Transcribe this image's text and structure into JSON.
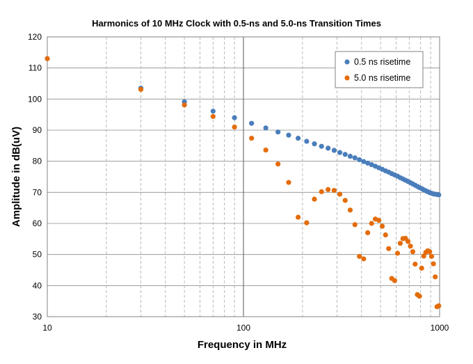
{
  "chart_data": {
    "type": "scatter",
    "title": "Harmonics of 10 MHz Clock with 0.5-ns and 5.0-ns Transition Times",
    "xlabel": "Frequency in MHz",
    "ylabel": "Amplitude in dB(uV)",
    "x_scale": "log",
    "xlim": [
      10,
      1000
    ],
    "ylim": [
      30,
      120
    ],
    "x_ticks": [
      10,
      100,
      1000
    ],
    "x_tick_labels": [
      "10",
      "100",
      "1000"
    ],
    "y_ticks": [
      30,
      40,
      50,
      60,
      70,
      80,
      90,
      100,
      110,
      120
    ],
    "y_tick_labels": [
      "30",
      "40",
      "50",
      "60",
      "70",
      "80",
      "90",
      "100",
      "110",
      "120"
    ],
    "grid": true,
    "legend_position": "top-right",
    "series": [
      {
        "name": "0.5 ns risetime",
        "color": "#4a7ebb",
        "x": [
          10,
          30,
          50,
          70,
          90,
          110,
          130,
          150,
          170,
          190,
          210,
          230,
          250,
          270,
          290,
          310,
          330,
          350,
          370,
          390,
          410,
          430,
          450,
          470,
          490,
          510,
          530,
          550,
          570,
          590,
          610,
          630,
          650,
          670,
          690,
          710,
          730,
          750,
          770,
          790,
          810,
          830,
          850,
          870,
          890,
          910,
          930,
          950,
          970,
          990
        ],
        "y": [
          113,
          103.5,
          99.1,
          96.1,
          94,
          92.2,
          90.7,
          89.4,
          88.4,
          87.4,
          86.4,
          85.6,
          84.8,
          84.2,
          83.5,
          82.8,
          82.2,
          81.6,
          81.1,
          80.5,
          79.9,
          79.4,
          78.9,
          78.4,
          77.9,
          77.4,
          76.9,
          76.5,
          76.0,
          75.6,
          75.2,
          74.7,
          74.3,
          73.9,
          73.5,
          73.1,
          72.7,
          72.3,
          71.9,
          71.5,
          71.2,
          70.8,
          70.5,
          70.2,
          69.9,
          69.7,
          69.5,
          69.4,
          69.3,
          69.2
        ]
      },
      {
        "name": "5.0 ns risetime",
        "color": "#e46c0a",
        "x": [
          10,
          30,
          50,
          70,
          90,
          110,
          130,
          150,
          170,
          190,
          210,
          230,
          250,
          270,
          290,
          310,
          330,
          350,
          370,
          390,
          410,
          430,
          450,
          470,
          490,
          510,
          530,
          550,
          570,
          590,
          610,
          630,
          650,
          670,
          690,
          710,
          730,
          750,
          770,
          790,
          810,
          830,
          850,
          870,
          890,
          910,
          930,
          950,
          970,
          990
        ],
        "y": [
          113,
          103.1,
          98.1,
          94.4,
          91,
          87.4,
          83.6,
          79.1,
          73.2,
          62,
          60.2,
          67.8,
          70.2,
          70.9,
          70.6,
          69.4,
          67.4,
          64.3,
          59.6,
          49.4,
          48.6,
          57,
          60,
          61.4,
          61,
          59.1,
          56.3,
          51.9,
          42.3,
          41.6,
          50.4,
          53.6,
          55.1,
          55.2,
          54.2,
          52.7,
          50.9,
          46.9,
          37.1,
          36.6,
          45.6,
          49.5,
          50.7,
          51.2,
          50.9,
          49.4,
          47,
          42.8,
          33.2,
          33.5
        ]
      }
    ]
  }
}
